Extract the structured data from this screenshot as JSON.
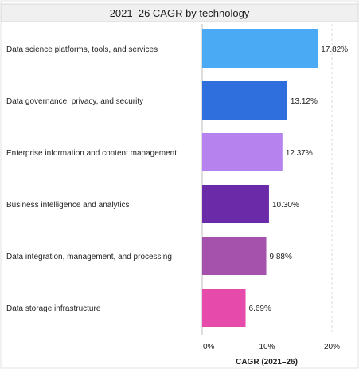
{
  "chart_data": {
    "type": "bar",
    "orientation": "horizontal",
    "title": "2021–26 CAGR by technology",
    "xlabel": "CAGR (2021–26)",
    "ylabel": "",
    "xlim": [
      0,
      0.2
    ],
    "xticks": [
      0,
      0.1,
      0.2
    ],
    "xtick_labels": [
      "0%",
      "10%",
      "20%"
    ],
    "grid": true,
    "legend": "none",
    "categories": [
      "Data science platforms, tools, and services",
      "Data governance, privacy, and security",
      "Enterprise information and content management",
      "Business intelligence and analytics",
      "Data integration, management, and processing",
      "Data storage infrastructure"
    ],
    "values": [
      0.1782,
      0.1312,
      0.1237,
      0.103,
      0.0988,
      0.0669
    ],
    "value_labels": [
      "17.82%",
      "13.12%",
      "12.37%",
      "10.30%",
      "9.88%",
      "6.69%"
    ],
    "colors": [
      "#4aabf4",
      "#2f6fdd",
      "#b683ee",
      "#6b2aa7",
      "#a552ad",
      "#e64aab"
    ]
  }
}
